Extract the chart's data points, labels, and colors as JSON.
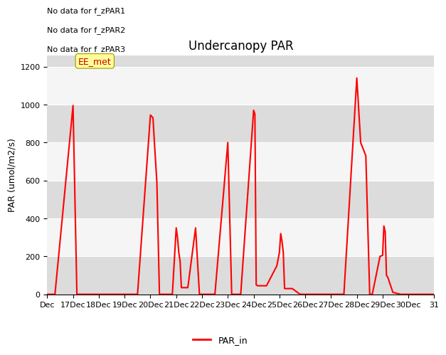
{
  "title": "Undercanopy PAR",
  "ylabel": "PAR (umol/m2/s)",
  "ylim": [
    0,
    1260
  ],
  "yticks": [
    0,
    200,
    400,
    600,
    800,
    1000,
    1200
  ],
  "legend_label": "PAR_in",
  "line_color": "#ff0000",
  "line_width": 1.5,
  "bg_color": "#ebebeb",
  "band_color_light": "#f5f5f5",
  "band_color_dark": "#dcdcdc",
  "no_data_texts": [
    "No data for f_zPAR1",
    "No data for f_zPAR2",
    "No data for f_zPAR3"
  ],
  "ee_met_label": "EE_met",
  "x_tick_labels": [
    "Dec",
    "17Dec",
    "18Dec",
    "19Dec",
    "20Dec",
    "21Dec",
    "22Dec",
    "23Dec",
    "24Dec",
    "25Dec",
    "26Dec",
    "27Dec",
    "28Dec",
    "29Dec",
    "30Dec",
    "31"
  ],
  "time_series": [
    [
      0,
      0
    ],
    [
      0.3,
      0
    ],
    [
      1.0,
      995
    ],
    [
      1.15,
      0
    ],
    [
      1.5,
      0
    ],
    [
      2.0,
      0
    ],
    [
      2.5,
      0
    ],
    [
      3.0,
      0
    ],
    [
      3.5,
      0
    ],
    [
      4.0,
      945
    ],
    [
      4.1,
      930
    ],
    [
      4.15,
      810
    ],
    [
      4.25,
      590
    ],
    [
      4.35,
      0
    ],
    [
      4.5,
      0
    ],
    [
      4.85,
      0
    ],
    [
      5.0,
      350
    ],
    [
      5.05,
      300
    ],
    [
      5.1,
      220
    ],
    [
      5.15,
      175
    ],
    [
      5.2,
      35
    ],
    [
      5.45,
      35
    ],
    [
      5.75,
      350
    ],
    [
      5.9,
      0
    ],
    [
      6.0,
      0
    ],
    [
      6.5,
      0
    ],
    [
      7.0,
      800
    ],
    [
      7.15,
      0
    ],
    [
      7.5,
      0
    ],
    [
      8.0,
      970
    ],
    [
      8.05,
      950
    ],
    [
      8.1,
      50
    ],
    [
      8.15,
      45
    ],
    [
      8.5,
      45
    ],
    [
      8.9,
      150
    ],
    [
      9.0,
      220
    ],
    [
      9.05,
      320
    ],
    [
      9.1,
      280
    ],
    [
      9.15,
      220
    ],
    [
      9.2,
      30
    ],
    [
      9.5,
      30
    ],
    [
      9.8,
      0
    ],
    [
      10.0,
      0
    ],
    [
      10.5,
      0
    ],
    [
      11.0,
      0
    ],
    [
      11.5,
      0
    ],
    [
      12.0,
      1140
    ],
    [
      12.15,
      800
    ],
    [
      12.35,
      730
    ],
    [
      12.5,
      0
    ],
    [
      12.6,
      0
    ],
    [
      12.9,
      200
    ],
    [
      13.0,
      205
    ],
    [
      13.05,
      360
    ],
    [
      13.1,
      330
    ],
    [
      13.15,
      100
    ],
    [
      13.2,
      90
    ],
    [
      13.4,
      10
    ],
    [
      13.7,
      0
    ],
    [
      14.0,
      0
    ],
    [
      15.0,
      0
    ]
  ]
}
